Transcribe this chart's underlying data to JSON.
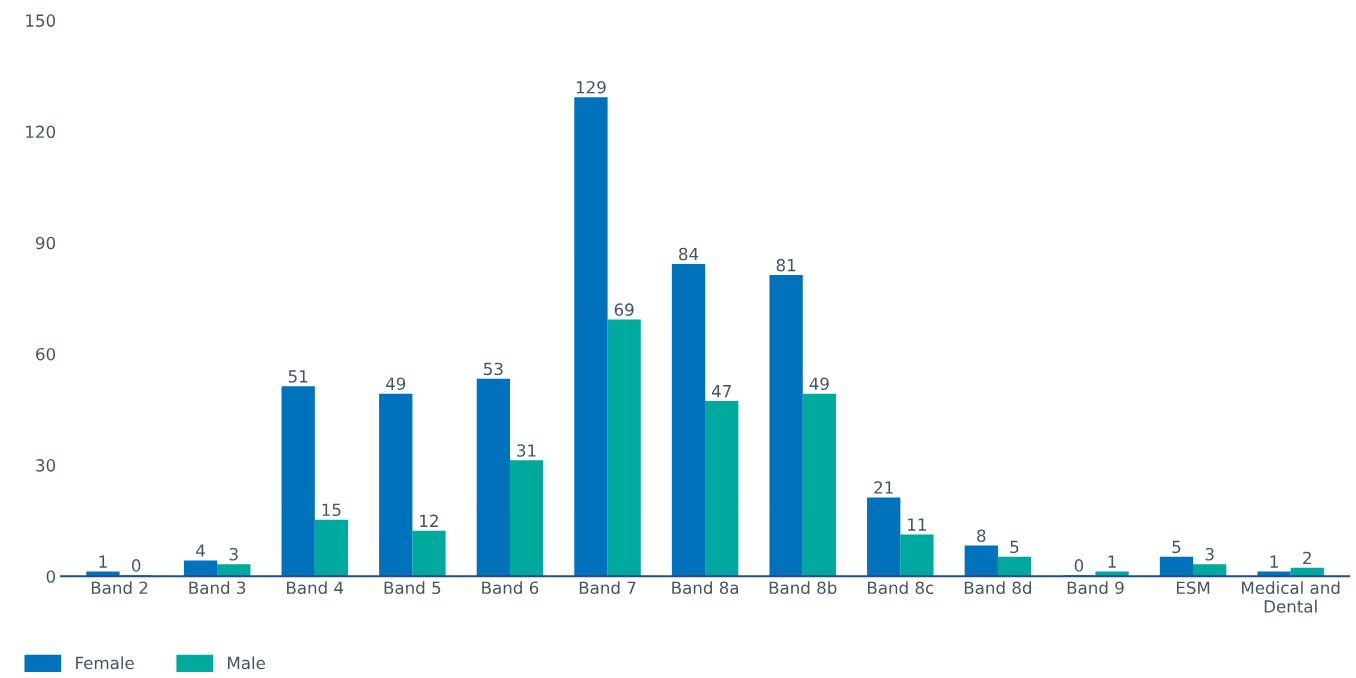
{
  "chart_data": {
    "type": "bar",
    "categories": [
      "Band 2",
      "Band 3",
      "Band 4",
      "Band 5",
      "Band 6",
      "Band 7",
      "Band 8a",
      "Band 8b",
      "Band 8c",
      "Band 8d",
      "Band 9",
      "ESM",
      "Medical and\nDental"
    ],
    "series": [
      {
        "name": "Female",
        "color": "#0072bc",
        "values": [
          1,
          4,
          51,
          49,
          53,
          129,
          84,
          81,
          21,
          8,
          0,
          5,
          1
        ]
      },
      {
        "name": "Male",
        "color": "#00a99d",
        "values": [
          0,
          3,
          15,
          12,
          31,
          69,
          47,
          49,
          11,
          5,
          1,
          3,
          2
        ]
      }
    ],
    "ylim": [
      0,
      150
    ],
    "yticks": [
      0,
      30,
      60,
      90,
      120,
      150
    ],
    "data_labels": true,
    "grid": false,
    "legend": "bottom left"
  }
}
